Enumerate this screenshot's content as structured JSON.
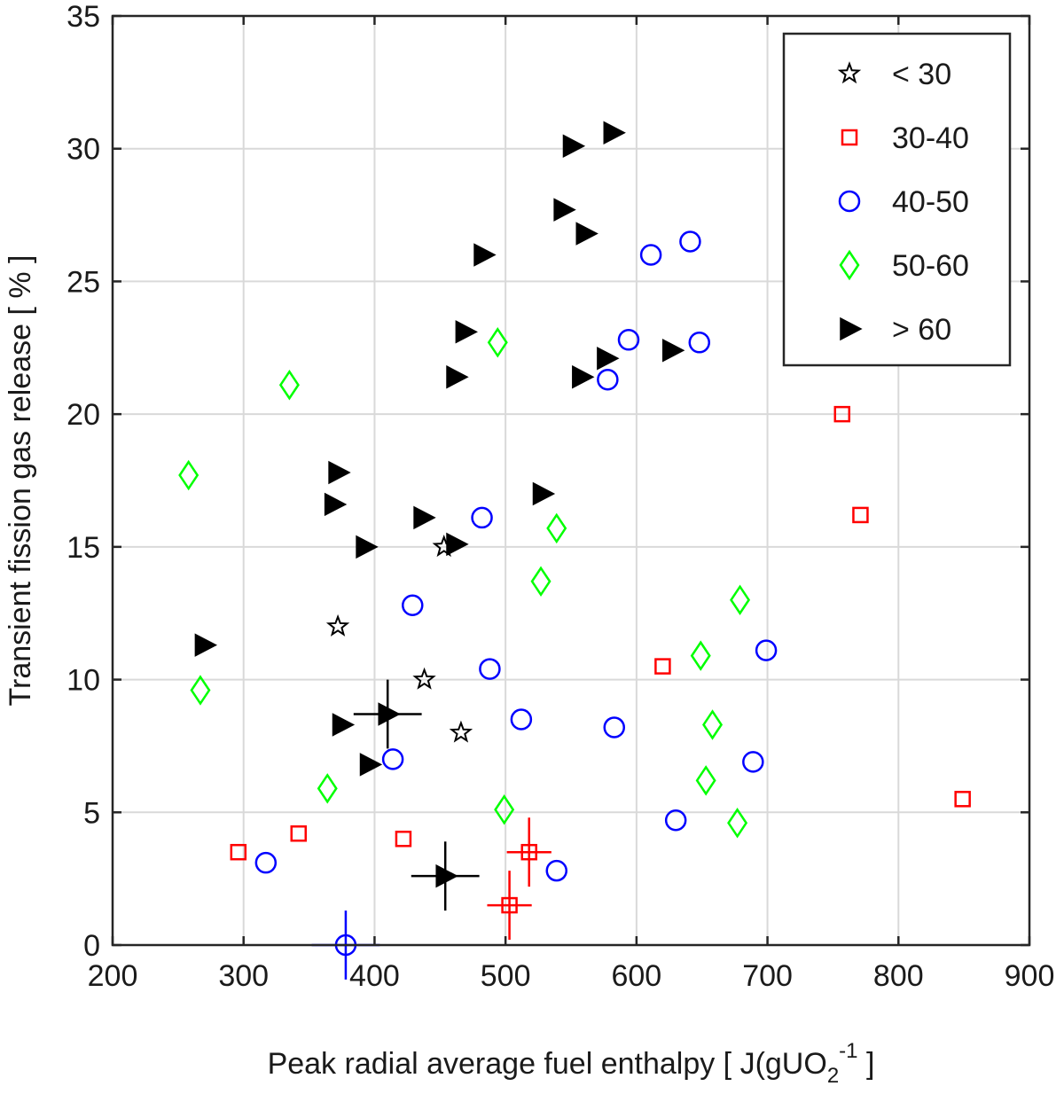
{
  "chart_data": {
    "type": "scatter",
    "title": "",
    "xlabel": "Peak radial average fuel enthalpy [ J(gUO",
    "xlabel_sub": "2",
    "xlabel_sup": "-1",
    "xlabel_tail": " ]",
    "ylabel": "Transient fission gas release [ % ]",
    "xlim": [
      200,
      900
    ],
    "ylim": [
      0,
      35
    ],
    "xticks": [
      200,
      300,
      400,
      500,
      600,
      700,
      800,
      900
    ],
    "yticks": [
      0,
      5,
      10,
      15,
      20,
      25,
      30,
      35
    ],
    "grid": true,
    "legend_position": "top-right",
    "series": [
      {
        "name": "< 30",
        "marker": "star",
        "color": "#000000",
        "points": [
          [
            372,
            12.0
          ],
          [
            438,
            10.0
          ],
          [
            466,
            8.0
          ],
          [
            453,
            15.0
          ]
        ],
        "error_bars": []
      },
      {
        "name": "30-40",
        "marker": "square",
        "color": "#ff0000",
        "points": [
          [
            296,
            3.5
          ],
          [
            342,
            4.2
          ],
          [
            422,
            4.0
          ],
          [
            518,
            3.5
          ],
          [
            503,
            1.5
          ],
          [
            620,
            10.5
          ],
          [
            757,
            20.0
          ],
          [
            771,
            16.2
          ],
          [
            849,
            5.5
          ]
        ],
        "error_bars": [
          {
            "x": 518,
            "y": 3.5,
            "xerr": 17,
            "yerr": 1.3
          },
          {
            "x": 503,
            "y": 1.5,
            "xerr": 17,
            "yerr": 1.3
          }
        ]
      },
      {
        "name": "40-50",
        "marker": "circle",
        "color": "#0000ff",
        "points": [
          [
            317,
            3.1
          ],
          [
            378,
            0.0
          ],
          [
            414,
            7.0
          ],
          [
            429,
            12.8
          ],
          [
            482,
            16.1
          ],
          [
            488,
            10.4
          ],
          [
            512,
            8.5
          ],
          [
            539,
            2.8
          ],
          [
            578,
            21.3
          ],
          [
            583,
            8.2
          ],
          [
            594,
            22.8
          ],
          [
            611,
            26.0
          ],
          [
            630,
            4.7
          ],
          [
            641,
            26.5
          ],
          [
            648,
            22.7
          ],
          [
            689,
            6.9
          ],
          [
            699,
            11.1
          ]
        ],
        "error_bars": [
          {
            "x": 378,
            "y": 0.0,
            "xerr": 26,
            "yerr": 1.3
          }
        ]
      },
      {
        "name": "50-60",
        "marker": "diamond",
        "color": "#00ff00",
        "points": [
          [
            258,
            17.7
          ],
          [
            267,
            9.6
          ],
          [
            335,
            21.1
          ],
          [
            364,
            5.9
          ],
          [
            494,
            22.7
          ],
          [
            499,
            5.1
          ],
          [
            527,
            13.7
          ],
          [
            539,
            15.7
          ],
          [
            649,
            10.9
          ],
          [
            653,
            6.2
          ],
          [
            658,
            8.3
          ],
          [
            677,
            4.6
          ],
          [
            679,
            13.0
          ]
        ],
        "error_bars": []
      },
      {
        "name": "> 60",
        "marker": "triangle-right",
        "color": "#000000",
        "points": [
          [
            270,
            11.3
          ],
          [
            369,
            16.6
          ],
          [
            372,
            17.8
          ],
          [
            375,
            8.3
          ],
          [
            393,
            15.0
          ],
          [
            396,
            6.8
          ],
          [
            410,
            8.7
          ],
          [
            437,
            16.1
          ],
          [
            454,
            2.6
          ],
          [
            462,
            15.1
          ],
          [
            462,
            21.4
          ],
          [
            469,
            23.1
          ],
          [
            483,
            26.0
          ],
          [
            528,
            17.0
          ],
          [
            544,
            27.7
          ],
          [
            551,
            30.1
          ],
          [
            558,
            21.4
          ],
          [
            561,
            26.8
          ],
          [
            577,
            22.1
          ],
          [
            582,
            30.6
          ],
          [
            627,
            22.4
          ]
        ],
        "error_bars": [
          {
            "x": 410,
            "y": 8.7,
            "xerr": 26,
            "yerr": 1.3
          },
          {
            "x": 454,
            "y": 2.6,
            "xerr": 26,
            "yerr": 1.3
          }
        ]
      }
    ]
  }
}
